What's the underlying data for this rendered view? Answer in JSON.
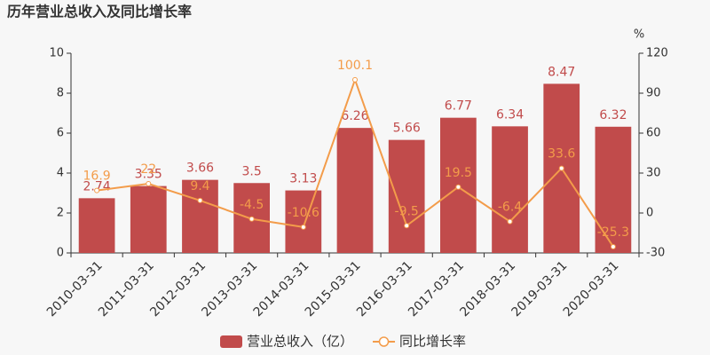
{
  "chart_data": {
    "type": "bar",
    "title": "历年营业总收入及同比增长率",
    "categories": [
      "2010-03-31",
      "2011-03-31",
      "2012-03-31",
      "2013-03-31",
      "2014-03-31",
      "2015-03-31",
      "2016-03-31",
      "2017-03-31",
      "2018-03-31",
      "2019-03-31",
      "2020-03-31"
    ],
    "series": [
      {
        "name": "营业总收入（亿）",
        "type": "bar",
        "color": "#c14b4b",
        "values": [
          2.74,
          3.35,
          3.66,
          3.5,
          3.13,
          6.26,
          5.66,
          6.77,
          6.34,
          8.47,
          6.32
        ]
      },
      {
        "name": "同比增长率",
        "type": "line",
        "axis": "y2",
        "color": "#f39c4a",
        "values": [
          16.9,
          22,
          9.4,
          -4.5,
          -10.6,
          100.1,
          -9.5,
          19.5,
          -6.4,
          33.6,
          -25.3
        ]
      }
    ],
    "ylim": [
      0,
      10
    ],
    "yticks": [
      0,
      2,
      4,
      6,
      8,
      10
    ],
    "y2lim": [
      -30,
      120
    ],
    "y2ticks": [
      -30,
      0,
      30,
      60,
      90,
      120
    ],
    "y2label": "%",
    "grid": false
  }
}
